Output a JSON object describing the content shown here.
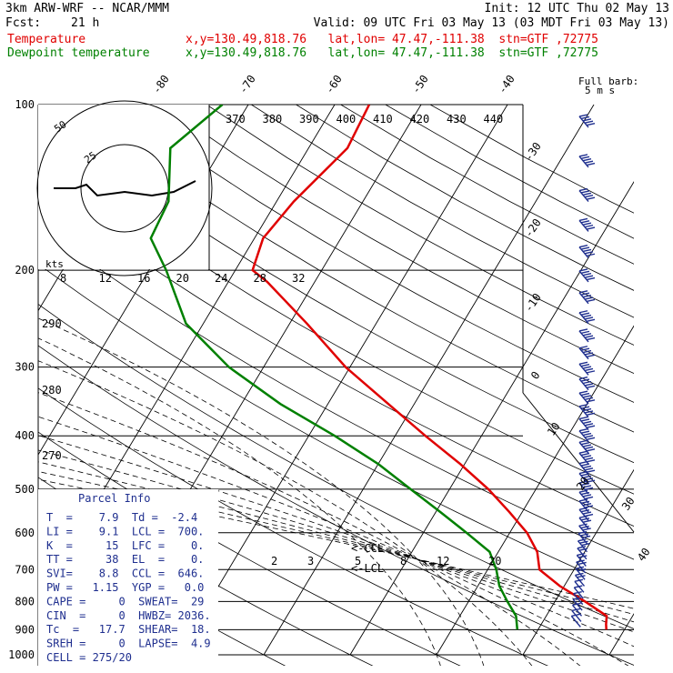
{
  "header": {
    "model": "3km ARW-WRF -- NCAR/MMM",
    "init": "Init: 12 UTC Thu 02 May 13",
    "fcst_label": "Fcst:",
    "fcst_value": "21 h",
    "valid": "Valid: 09 UTC Fri 03 May 13 (03 MDT Fri 03 May 13)",
    "lines": [
      {
        "name": "Temperature",
        "info": "x,y=130.49,818.76   lat,lon= 47.47,-111.38  stn=GTF ,72775",
        "color": "#e00000"
      },
      {
        "name": "Dewpoint temperature",
        "info": "x,y=130.49,818.76   lat,lon= 47.47,-111.38  stn=GTF ,72775",
        "color": "#008000"
      }
    ]
  },
  "parcel_info": {
    "title": "Parcel Info",
    "rows": [
      "T  =    7.9  Td =  -2.4",
      "LI =    9.1  LCL =  700.",
      "K  =     15  LFC =    0.",
      "TT =     38  EL  =    0.",
      "SVI=    8.8  CCL =  646.",
      "PW =   1.15  YGP =   0.0",
      "CAPE =     0  SWEAT=  29",
      "CIN  =     0  HWBZ= 2036.",
      "Tc  =   17.7  SHEAR=  18.",
      "SREH =     0  LAPSE=  4.9",
      "CELL = 275/20"
    ]
  },
  "wind_legend": {
    "line1": "Full barb:",
    "line2": "5 m s"
  },
  "hodograph": {
    "unit": "kts",
    "ring_labels": [
      "50",
      "25"
    ]
  },
  "markers": {
    "ccl": "<-CCL",
    "lcl": "<-LCL"
  },
  "chart_data": {
    "type": "skew-t",
    "x_unit": "degC",
    "y_unit": "hPa",
    "pressure_ticks": [
      100,
      200,
      300,
      400,
      500,
      600,
      700,
      800,
      900,
      1000
    ],
    "pressure_labels": [
      "100",
      "200",
      "300",
      "400",
      "500",
      "600",
      "700",
      "800",
      "900",
      "1000"
    ],
    "isotherm_labels_top": [
      "-80",
      "-70",
      "-60",
      "-50",
      "-40"
    ],
    "isotherm_labels_right": [
      "-30",
      "-20",
      "-10",
      "0",
      "10",
      "20",
      "30",
      "40"
    ],
    "theta_e_labels": [
      "370",
      "380",
      "390",
      "400",
      "410",
      "420",
      "430",
      "440"
    ],
    "hodograph_speed_labels": [
      "8",
      "12",
      "16",
      "20",
      "24",
      "28",
      "32"
    ],
    "theta_labels_left": [
      "290",
      "280",
      "270"
    ],
    "mixing_ratio_labels": [
      "2",
      "3",
      "5",
      "8",
      "12",
      "20"
    ],
    "series": [
      {
        "name": "Temperature",
        "color": "#e00000",
        "points": [
          [
            100,
            -56.0
          ],
          [
            120,
            -55.5
          ],
          [
            150,
            -58.0
          ],
          [
            175,
            -59.0
          ],
          [
            200,
            -58.0
          ],
          [
            210,
            -55.5
          ],
          [
            250,
            -48.0
          ],
          [
            300,
            -40.5
          ],
          [
            350,
            -33.0
          ],
          [
            400,
            -26.5
          ],
          [
            450,
            -20.5
          ],
          [
            500,
            -15.5
          ],
          [
            550,
            -11.5
          ],
          [
            600,
            -8.0
          ],
          [
            650,
            -5.5
          ],
          [
            700,
            -4.0
          ],
          [
            750,
            -0.5
          ],
          [
            800,
            3.5
          ],
          [
            850,
            7.0
          ],
          [
            880,
            7.5
          ],
          [
            900,
            7.9
          ]
        ]
      },
      {
        "name": "Dewpoint temperature",
        "color": "#008000",
        "points": [
          [
            100,
            -73.0
          ],
          [
            120,
            -76.0
          ],
          [
            150,
            -72.5
          ],
          [
            175,
            -72.0
          ],
          [
            200,
            -68.0
          ],
          [
            250,
            -62.0
          ],
          [
            300,
            -54.0
          ],
          [
            350,
            -45.5
          ],
          [
            400,
            -37.0
          ],
          [
            450,
            -30.0
          ],
          [
            500,
            -24.5
          ],
          [
            550,
            -19.5
          ],
          [
            600,
            -15.0
          ],
          [
            650,
            -11.0
          ],
          [
            700,
            -9.0
          ],
          [
            750,
            -7.5
          ],
          [
            800,
            -5.5
          ],
          [
            850,
            -3.5
          ],
          [
            900,
            -2.4
          ]
        ]
      }
    ],
    "hodograph_path_uv": [
      [
        -13,
        0
      ],
      [
        -9,
        0
      ],
      [
        -7,
        -1
      ],
      [
        -5,
        2
      ],
      [
        0,
        1
      ],
      [
        5,
        2
      ],
      [
        9,
        1
      ],
      [
        13,
        -2
      ]
    ],
    "wind_barbs": {
      "pressures": [
        110,
        130,
        150,
        170,
        190,
        210,
        230,
        250,
        270,
        290,
        310,
        330,
        350,
        370,
        390,
        410,
        430,
        450,
        470,
        490,
        510,
        530,
        550,
        570,
        590,
        610,
        630,
        650,
        670,
        690,
        710,
        730,
        750,
        770,
        790,
        810,
        830,
        850,
        870,
        890
      ],
      "speeds_ms": [
        25,
        25,
        25,
        25,
        25,
        30,
        30,
        30,
        30,
        30,
        30,
        30,
        30,
        30,
        30,
        30,
        30,
        25,
        25,
        25,
        20,
        20,
        20,
        20,
        15,
        15,
        15,
        15,
        10,
        10,
        10,
        10,
        10,
        5,
        5,
        5,
        5,
        5,
        5,
        5
      ]
    }
  }
}
